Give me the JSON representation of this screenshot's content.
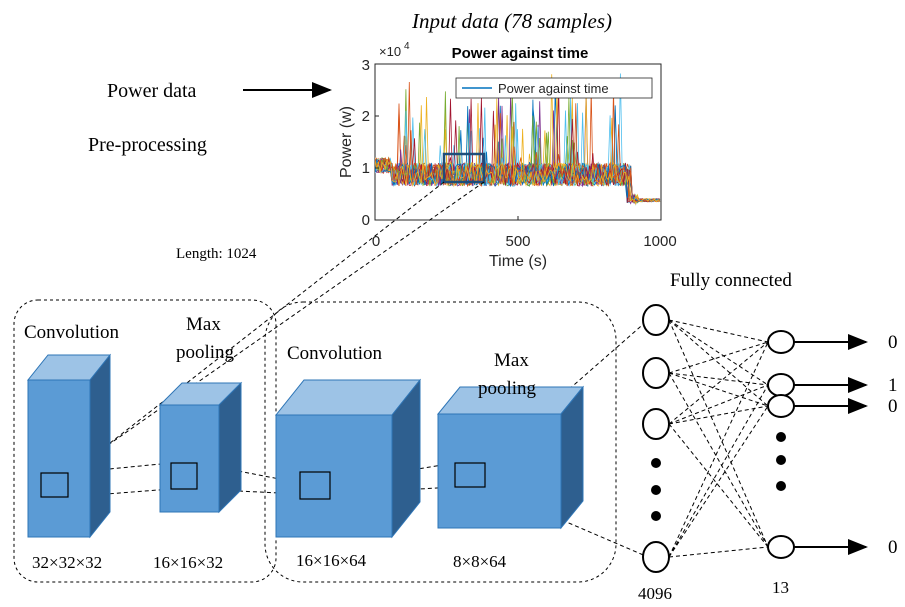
{
  "header": {
    "input_title": "Input data (78 samples)",
    "power_data_label": "Power data",
    "preprocessing_label": "Pre-processing",
    "length_label": "Length: 1024"
  },
  "plot": {
    "title": "Power against time",
    "exponent_prefix": "×10",
    "exponent_power": "4",
    "ylabel": "Power (w)",
    "xlabel": "Time (s)",
    "legend_label": "Power against time",
    "yticks": [
      "0",
      "1",
      "2",
      "3"
    ],
    "xticks": [
      "0",
      "500",
      "1000"
    ],
    "colors": [
      "#0072BD",
      "#D95319",
      "#EDB120",
      "#7E2F8E",
      "#77AC30",
      "#4DBEEE",
      "#A2142F"
    ]
  },
  "cnn": {
    "conv1_label": "Convolution",
    "pool1_label_line1": "Max",
    "pool1_label_line2": "pooling",
    "conv2_label": "Convolution",
    "pool2_label_line1": "Max",
    "pool2_label_line2": "pooling",
    "dim1": "32×32×32",
    "dim2": "16×16×32",
    "dim3": "16×16×64",
    "dim4": "8×8×64",
    "box_color": "#5b9bd5"
  },
  "fc": {
    "title": "Fully connected",
    "count_left": "4096",
    "count_right": "13",
    "outputs": [
      "0",
      "1",
      "0",
      "0"
    ]
  }
}
